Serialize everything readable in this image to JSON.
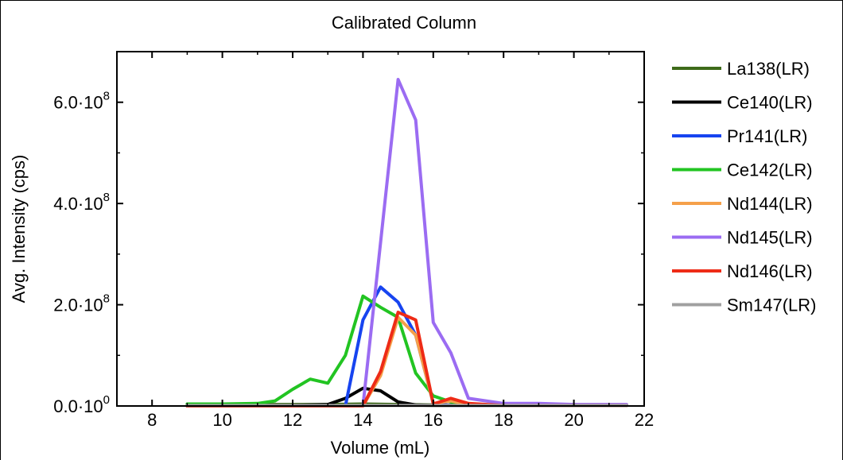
{
  "chart_data": {
    "type": "line",
    "title": "Calibrated Column",
    "xlabel": "Volume (mL)",
    "ylabel": "Avg. Intensity (cps)",
    "xlim": [
      7,
      22
    ],
    "ylim": [
      0,
      700000000.0
    ],
    "x_ticks": [
      8,
      10,
      12,
      14,
      16,
      18,
      20,
      22
    ],
    "y_ticks": [
      {
        "value": 0,
        "mantissa": "0.0·10",
        "exponent": "0"
      },
      {
        "value": 200000000.0,
        "mantissa": "2.0·10",
        "exponent": "8"
      },
      {
        "value": 400000000.0,
        "mantissa": "4.0·10",
        "exponent": "8"
      },
      {
        "value": 600000000.0,
        "mantissa": "6.0·10",
        "exponent": "8"
      }
    ],
    "grid": false,
    "legend_position": "right",
    "series": [
      {
        "name": "La138(LR)",
        "color": "#3e6b1a",
        "x": [
          9,
          10,
          11,
          12,
          13,
          14,
          15,
          16,
          17,
          18,
          19,
          20,
          21.5
        ],
        "y": [
          3000000.0,
          3000000.0,
          3000000.0,
          3000000.0,
          3000000.0,
          4000000.0,
          3000000.0,
          2000000.0,
          2000000.0,
          2000000.0,
          2000000.0,
          2000000.0,
          2000000.0
        ]
      },
      {
        "name": "Ce140(LR)",
        "color": "#000000",
        "x": [
          9,
          10,
          11,
          12,
          12.5,
          13,
          13.5,
          14,
          14.5,
          15,
          15.5,
          16,
          17,
          18,
          19,
          20,
          21.5
        ],
        "y": [
          1000000.0,
          1000000.0,
          1000000.0,
          1000000.0,
          2000000.0,
          3000000.0,
          15000000.0,
          35000000.0,
          30000000.0,
          8000000.0,
          2000000.0,
          1000000.0,
          1000000.0,
          1000000.0,
          1000000.0,
          1000000.0,
          1000000.0
        ]
      },
      {
        "name": "Pr141(LR)",
        "color": "#1744f0",
        "x": [
          9,
          12,
          13.5,
          14,
          14.5,
          15,
          15.5,
          16,
          16.5,
          17,
          18,
          19,
          20,
          21.5
        ],
        "y": [
          0,
          0,
          0,
          170000000.0,
          235000000.0,
          205000000.0,
          140000000.0,
          5000000.0,
          1000000.0,
          1000000.0,
          1000000.0,
          1000000.0,
          1000000.0,
          1000000.0
        ]
      },
      {
        "name": "Ce142(LR)",
        "color": "#22c422",
        "x": [
          9,
          10,
          11,
          11.5,
          12,
          12.5,
          13,
          13.5,
          14,
          14.5,
          15,
          15.5,
          16,
          16.5,
          17,
          18,
          19,
          20,
          21.5
        ],
        "y": [
          4000000.0,
          4000000.0,
          5000000.0,
          10000000.0,
          33000000.0,
          53000000.0,
          45000000.0,
          100000000.0,
          217000000.0,
          195000000.0,
          175000000.0,
          65000000.0,
          20000000.0,
          8000000.0,
          3000000.0,
          2000000.0,
          2000000.0,
          2000000.0,
          2000000.0
        ]
      },
      {
        "name": "Nd144(LR)",
        "color": "#f5a04a",
        "x": [
          9,
          14,
          14.5,
          15,
          15.5,
          16,
          16.5,
          17,
          18,
          19,
          20,
          21.5
        ],
        "y": [
          0,
          0,
          60000000.0,
          175000000.0,
          140000000.0,
          5000000.0,
          10000000.0,
          2000000.0,
          1000000.0,
          1000000.0,
          1000000.0,
          1000000.0
        ]
      },
      {
        "name": "Nd145(LR)",
        "color": "#9b6cf2",
        "x": [
          9,
          14,
          15,
          15.5,
          16,
          16.5,
          17,
          17.5,
          18,
          19,
          20,
          21.5
        ],
        "y": [
          0,
          0,
          645000000.0,
          565000000.0,
          165000000.0,
          105000000.0,
          15000000.0,
          10000000.0,
          5000000.0,
          5000000.0,
          3000000.0,
          3000000.0
        ]
      },
      {
        "name": "Nd146(LR)",
        "color": "#ee2b16",
        "x": [
          9,
          14,
          14.5,
          15,
          15.5,
          16,
          16.5,
          17,
          18,
          19,
          20,
          21.5
        ],
        "y": [
          0,
          0,
          68000000.0,
          185000000.0,
          170000000.0,
          4000000.0,
          15000000.0,
          5000000.0,
          1000000.0,
          1000000.0,
          1000000.0,
          1000000.0
        ]
      },
      {
        "name": "Sm147(LR)",
        "color": "#a0a0a0",
        "x": [
          9,
          12,
          14,
          16,
          18,
          20,
          21.5
        ],
        "y": [
          1000000.0,
          1000000.0,
          1000000.0,
          1000000.0,
          1000000.0,
          1000000.0,
          1000000.0
        ]
      }
    ]
  }
}
